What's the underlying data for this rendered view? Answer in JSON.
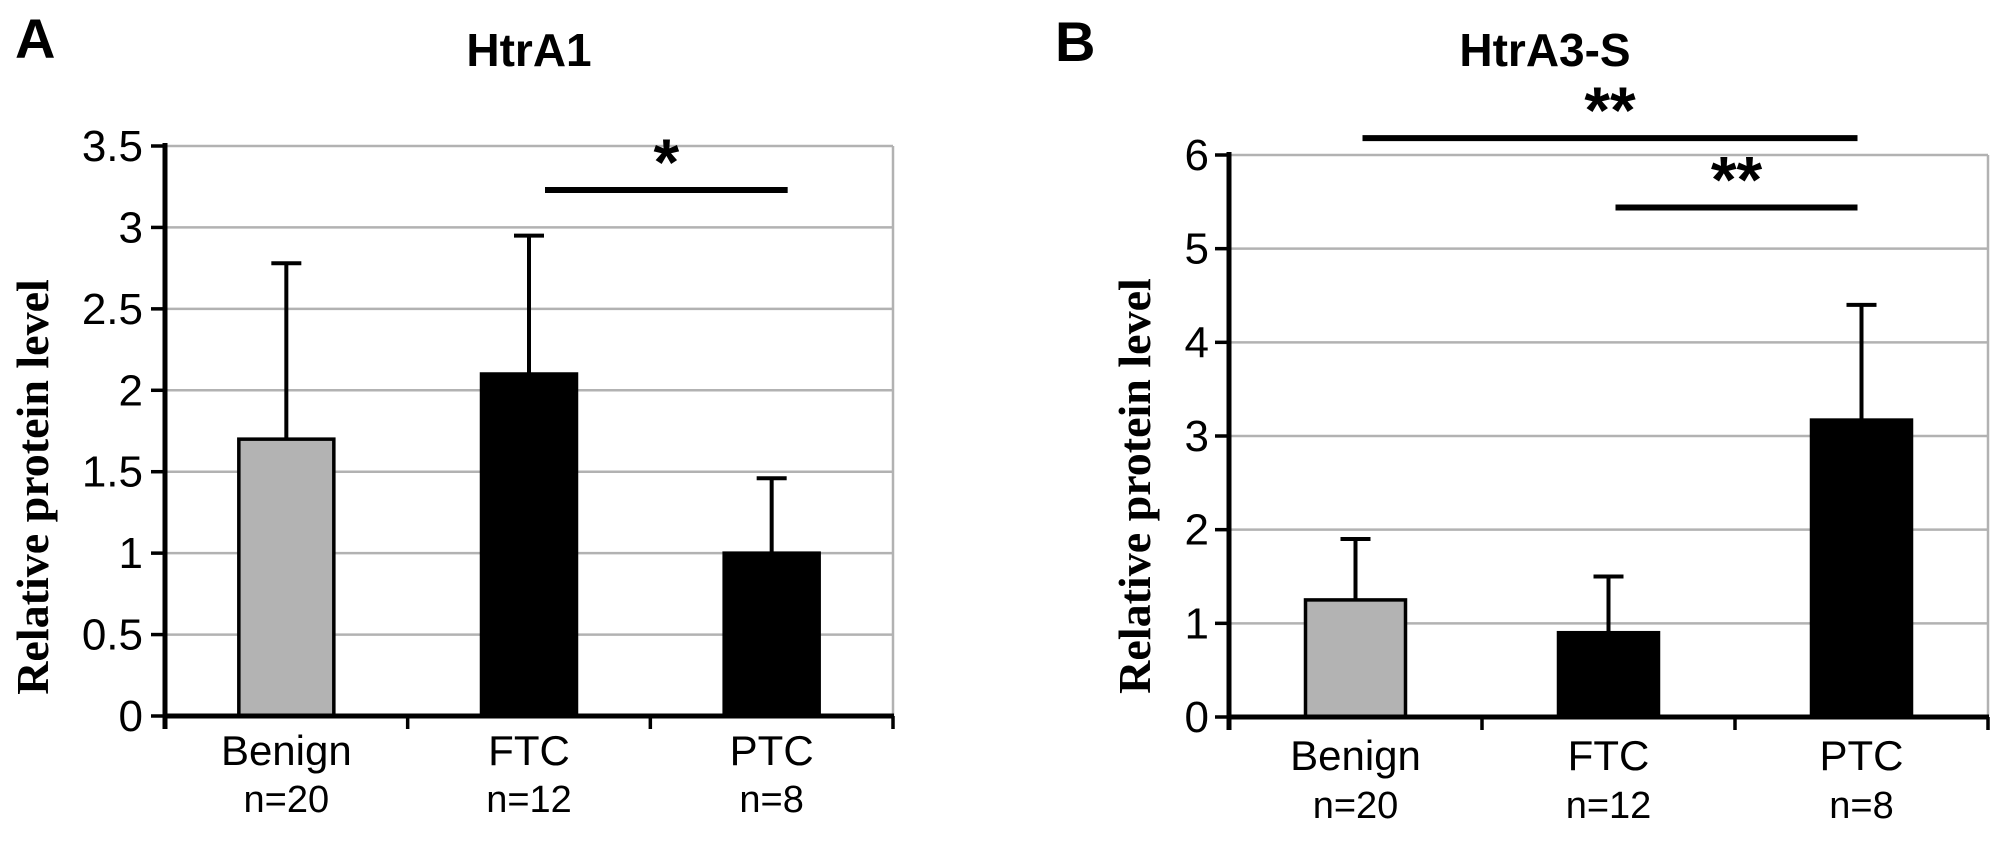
{
  "figure": {
    "background": "#ffffff",
    "panels": [
      "A",
      "B"
    ]
  },
  "colors": {
    "bar_gray": "#b3b3b3",
    "bar_black": "#000000",
    "bar_border": "#000000",
    "gridline": "#b2b2b2",
    "axis": "#000000",
    "significance_line": "#000000",
    "text": "#000000"
  },
  "chart_data": [
    {
      "type": "bar",
      "panel_label": "A",
      "title": "HtrA1",
      "ylabel": "Relative protein level",
      "categories": [
        "Benign",
        "FTC",
        "PTC"
      ],
      "sample_sizes": [
        "n=20",
        "n=12",
        "n=8"
      ],
      "values": [
        1.7,
        2.1,
        1.0
      ],
      "errors_upper": [
        1.08,
        0.85,
        0.46
      ],
      "bar_colors": [
        "#b3b3b3",
        "#000000",
        "#000000"
      ],
      "ylim": [
        0,
        3.5
      ],
      "ytick_labels": [
        "0",
        "0.5",
        "1",
        "1.5",
        "2",
        "2.5",
        "3",
        "3.5"
      ],
      "grid": true,
      "legend": "none",
      "significance": [
        {
          "from": 1,
          "to": 2,
          "label": "*",
          "y": 3.23
        }
      ]
    },
    {
      "type": "bar",
      "panel_label": "B",
      "title": "HtrA3-S",
      "ylabel": "Relative protein level",
      "categories": [
        "Benign",
        "FTC",
        "PTC"
      ],
      "sample_sizes": [
        "n=20",
        "n=12",
        "n=8"
      ],
      "values": [
        1.25,
        0.9,
        3.17
      ],
      "errors_upper": [
        0.65,
        0.6,
        1.23
      ],
      "bar_colors": [
        "#b3b3b3",
        "#000000",
        "#000000"
      ],
      "ylim": [
        0,
        6
      ],
      "ytick_labels": [
        "0",
        "1",
        "2",
        "3",
        "4",
        "5",
        "6"
      ],
      "grid": true,
      "legend": "none",
      "significance": [
        {
          "from": 0,
          "to": 2,
          "label": "**",
          "y": 6.18
        },
        {
          "from": 1,
          "to": 2,
          "label": "**",
          "y": 5.44
        }
      ]
    }
  ]
}
